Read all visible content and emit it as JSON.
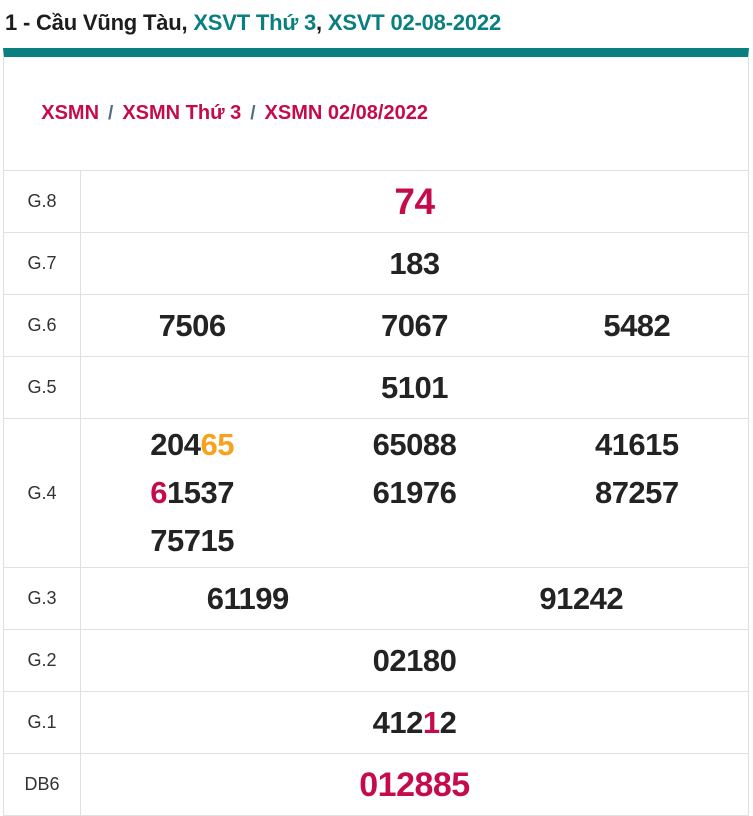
{
  "page_title": {
    "prefix": "1 - Cầu Vũng Tàu, ",
    "weekday_link": "XSVT Thứ 3",
    "separator": ", ",
    "date_link": "XSVT 02-08-2022"
  },
  "breadcrumb": {
    "items": [
      "XSMN",
      "XSMN Thứ 3",
      "XSMN 02/08/2022"
    ],
    "separator": "/"
  },
  "colors": {
    "teal": "#0a7f80",
    "crimson": "#c60b4d",
    "orange": "#f9a11b",
    "dark": "#232323",
    "border": "#e0e0e0",
    "separator": "#546e7a",
    "label": "#333333",
    "title_dark": "#1d1d1d"
  },
  "results_table": {
    "rows": [
      {
        "label": "G.8",
        "cols": 1,
        "size": "xl",
        "values": [
          [
            {
              "t": "74",
              "c": "crimson"
            }
          ]
        ]
      },
      {
        "label": "G.7",
        "cols": 1,
        "values": [
          [
            {
              "t": "183",
              "c": "dark"
            }
          ]
        ]
      },
      {
        "label": "G.6",
        "cols": 3,
        "values": [
          [
            {
              "t": "7506",
              "c": "dark"
            }
          ],
          [
            {
              "t": "7067",
              "c": "dark"
            }
          ],
          [
            {
              "t": "5482",
              "c": "dark"
            }
          ]
        ]
      },
      {
        "label": "G.5",
        "cols": 1,
        "values": [
          [
            {
              "t": "5101",
              "c": "dark"
            }
          ]
        ]
      },
      {
        "label": "G.4",
        "cols": 3,
        "values": [
          [
            {
              "t": "204",
              "c": "dark"
            },
            {
              "t": "65",
              "c": "orange"
            }
          ],
          [
            {
              "t": "65088",
              "c": "dark"
            }
          ],
          [
            {
              "t": "41615",
              "c": "dark"
            }
          ],
          [
            {
              "t": "6",
              "c": "crimson"
            },
            {
              "t": "1537",
              "c": "dark"
            }
          ],
          [
            {
              "t": "61976",
              "c": "dark"
            }
          ],
          [
            {
              "t": "87257",
              "c": "dark"
            }
          ],
          [
            {
              "t": "75715",
              "c": "dark"
            }
          ]
        ]
      },
      {
        "label": "G.3",
        "cols": 2,
        "values": [
          [
            {
              "t": "61199",
              "c": "dark"
            }
          ],
          [
            {
              "t": "91242",
              "c": "dark"
            }
          ]
        ]
      },
      {
        "label": "G.2",
        "cols": 1,
        "values": [
          [
            {
              "t": "02180",
              "c": "dark"
            }
          ]
        ]
      },
      {
        "label": "G.1",
        "cols": 1,
        "values": [
          [
            {
              "t": "412",
              "c": "dark"
            },
            {
              "t": "1",
              "c": "crimson"
            },
            {
              "t": "2",
              "c": "dark"
            }
          ]
        ]
      },
      {
        "label": "DB6",
        "cols": 1,
        "size": "lg",
        "values": [
          [
            {
              "t": "012885",
              "c": "crimson"
            }
          ]
        ]
      }
    ]
  }
}
